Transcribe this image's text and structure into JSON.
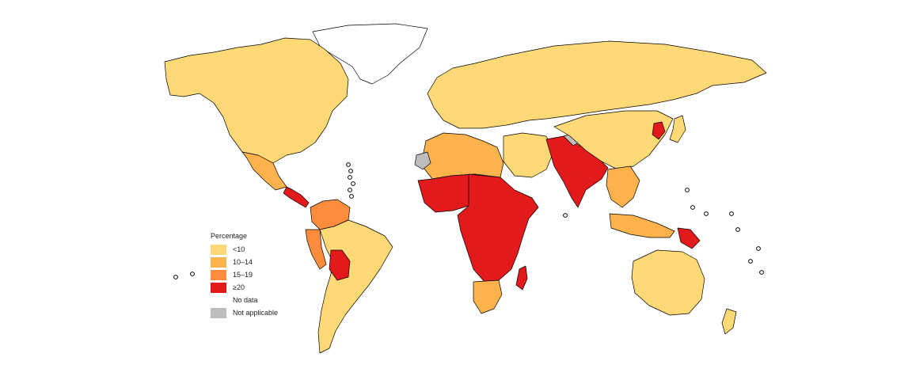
{
  "legend": {
    "title": "Percentage",
    "items": [
      {
        "label": "<10",
        "color": "#FED976"
      },
      {
        "label": "10–14",
        "color": "#FEB24C"
      },
      {
        "label": "15–19",
        "color": "#FD8D3C"
      },
      {
        "label": "≥20",
        "color": "#E31A1C"
      },
      {
        "label": "No data",
        "color": "#FFFFFF"
      },
      {
        "label": "Not applicable",
        "color": "#BDBDBD"
      }
    ]
  },
  "regions": [
    {
      "name": "greenland",
      "category": "No data"
    },
    {
      "name": "north-america",
      "category": "<10"
    },
    {
      "name": "mexico",
      "category": "10–14"
    },
    {
      "name": "central-america",
      "category": "≥20"
    },
    {
      "name": "colombia-venezuela",
      "category": "15–19"
    },
    {
      "name": "peru-ecuador",
      "category": "15–19"
    },
    {
      "name": "bolivia",
      "category": "≥20"
    },
    {
      "name": "south-america",
      "category": "<10"
    },
    {
      "name": "europe-russia",
      "category": "<10"
    },
    {
      "name": "northwest-africa",
      "category": "10–14"
    },
    {
      "name": "western-sahara",
      "category": "Not applicable"
    },
    {
      "name": "west-africa",
      "category": "≥20"
    },
    {
      "name": "central-east-africa",
      "category": "≥20"
    },
    {
      "name": "southern-africa",
      "category": "10–14"
    },
    {
      "name": "madagascar",
      "category": "≥20"
    },
    {
      "name": "middle-east",
      "category": "<10"
    },
    {
      "name": "south-asia",
      "category": "≥20"
    },
    {
      "name": "kashmir",
      "category": "Not applicable"
    },
    {
      "name": "east-asia",
      "category": "<10"
    },
    {
      "name": "korea-dprk",
      "category": "≥20"
    },
    {
      "name": "southeast-asia",
      "category": "10–14"
    },
    {
      "name": "papua-new-guinea",
      "category": "≥20"
    },
    {
      "name": "australia",
      "category": "<10"
    },
    {
      "name": "new-zealand",
      "category": "<10"
    }
  ]
}
